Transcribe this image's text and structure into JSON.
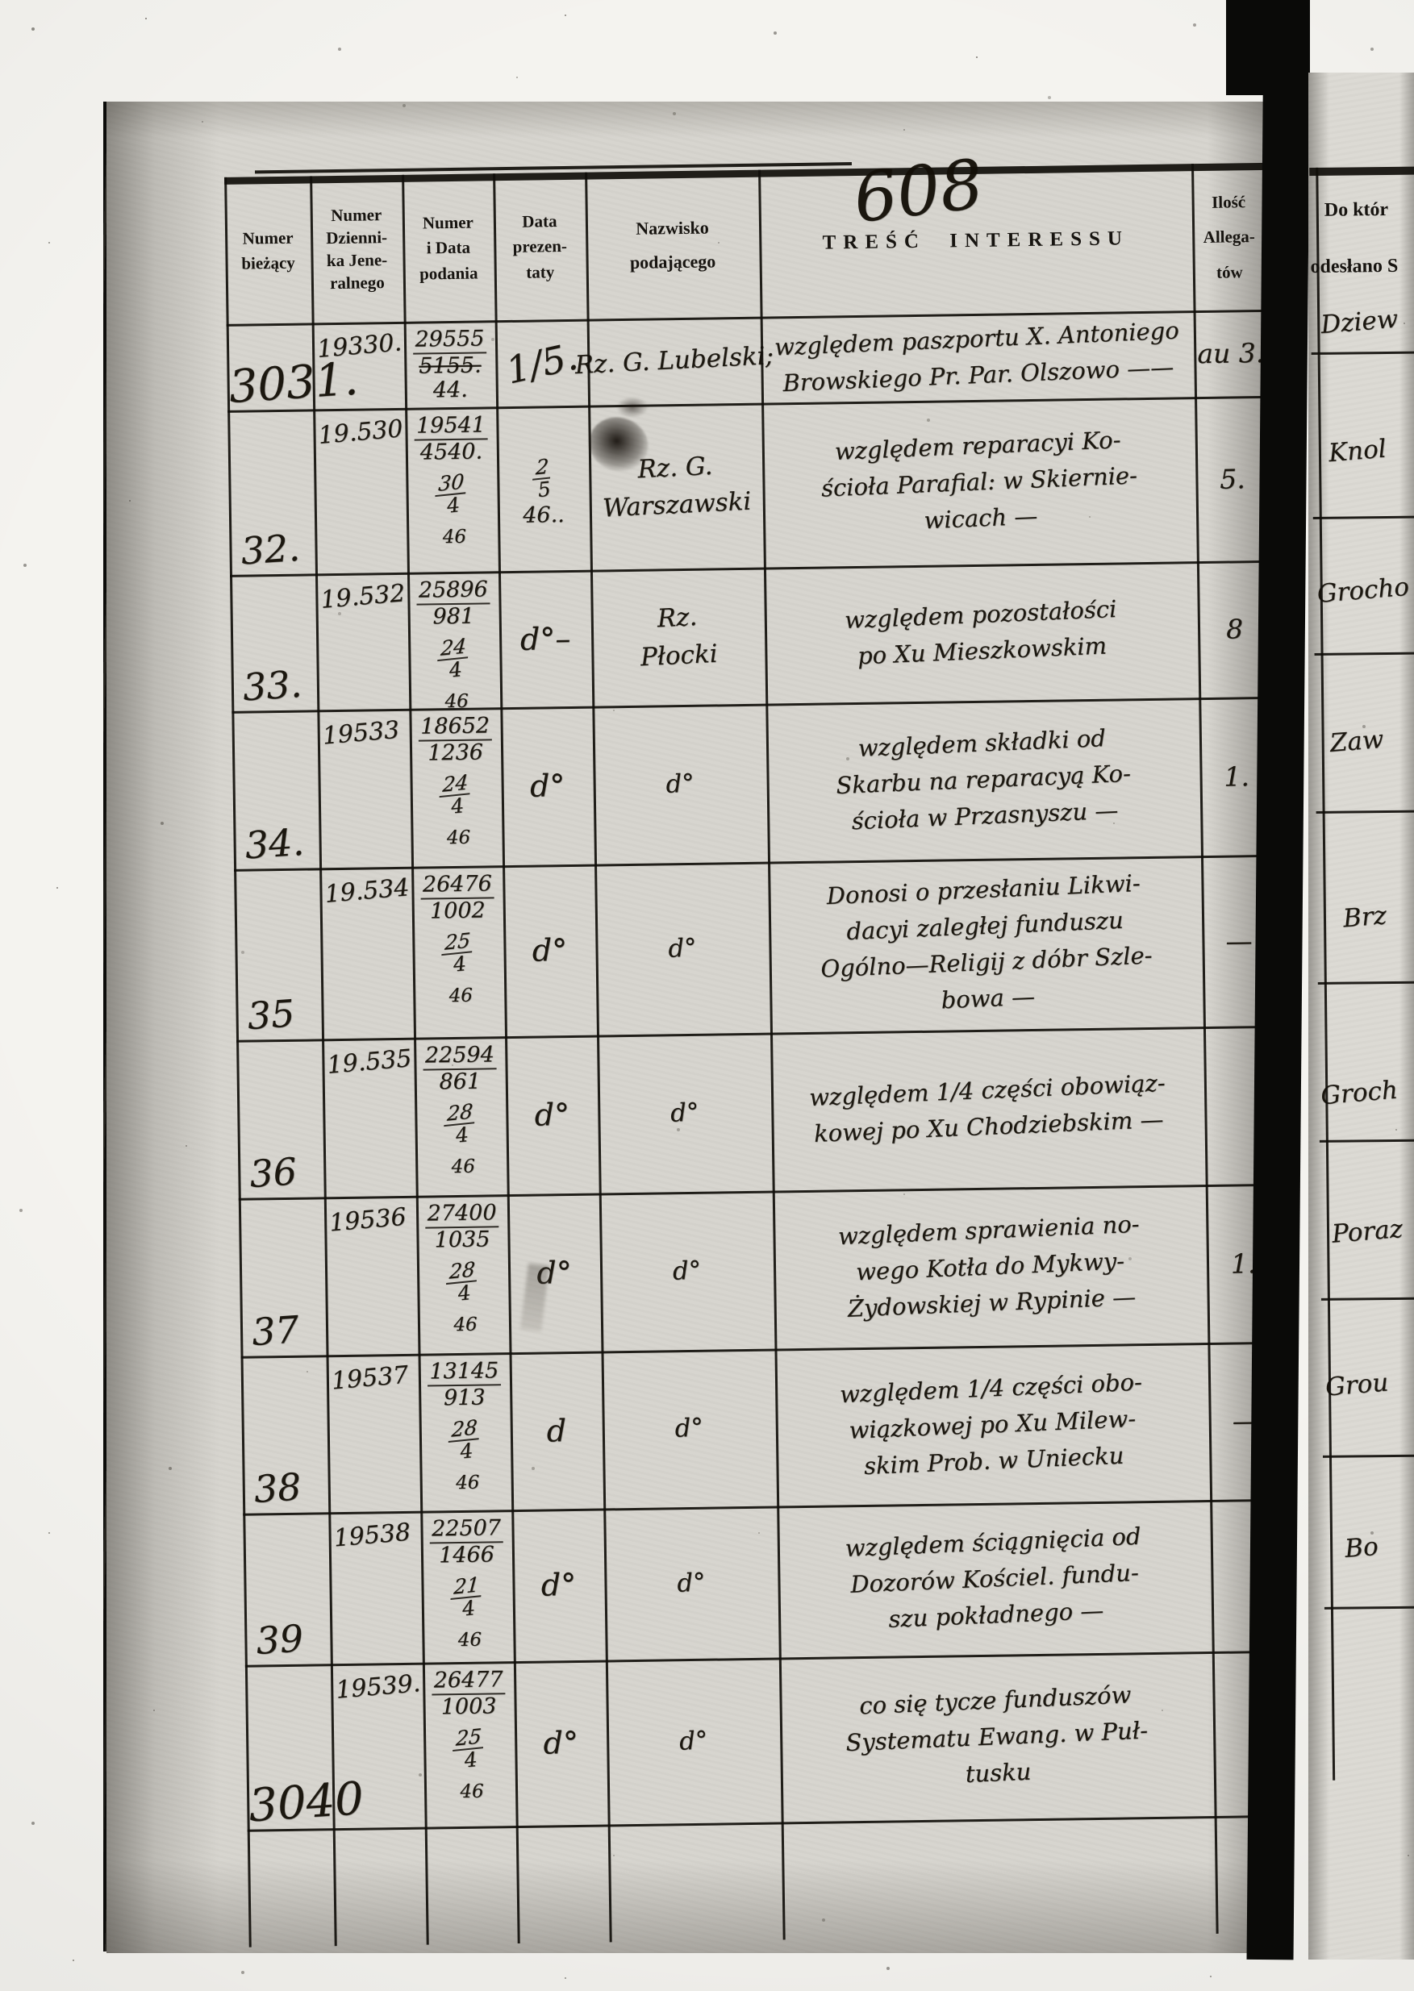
{
  "page": {
    "handwritten_number": "608"
  },
  "scan": {
    "paper_color": "#d6d4ce",
    "ink_color": "#17130c",
    "line_color": "#100e0a"
  },
  "left_table": {
    "headers": [
      {
        "id": "numer-biezacy",
        "lines": [
          "Numer",
          "bieżący"
        ]
      },
      {
        "id": "numer-dziennika-jeneralnego",
        "lines": [
          "Numer",
          "Dzienni-",
          "ka Jene-",
          "ralnego"
        ]
      },
      {
        "id": "numer-i-data-podania",
        "lines": [
          "Numer",
          "i Data",
          "podania"
        ]
      },
      {
        "id": "data-prezentaty",
        "lines": [
          "Data",
          "prezen-",
          "taty"
        ]
      },
      {
        "id": "nazwisko-podajacego",
        "lines": [
          "Nazwisko",
          "podającego"
        ]
      },
      {
        "id": "tresc-interessu",
        "lines": [
          "TREŚĆ INTERESSU"
        ]
      },
      {
        "id": "ilosc-allegatow",
        "lines": [
          "Ilość",
          "Allega-",
          "tów"
        ]
      }
    ],
    "rows": [
      {
        "biezacy": "3031.",
        "dziennik": "19330.",
        "numer": [
          {
            "t": "29555",
            "u": true
          },
          {
            "t": "5155.",
            "s": true
          },
          {
            "t": "44."
          }
        ],
        "prezentata": [
          {
            "t": "1/5.",
            "big": true
          }
        ],
        "nazwisko": [
          "Rz. G. Lubelski;"
        ],
        "tresc": [
          "względem paszportu X. Antoniego",
          "Browskiego Pr. Par. Olszowo ——"
        ],
        "ilosc": "au 3."
      },
      {
        "biezacy": "32.",
        "dziennik": "19.530",
        "numer": [
          {
            "t": "19541",
            "u": true
          },
          {
            "t": "4540."
          },
          {
            "frac": [
              "30",
              "4"
            ],
            "y": "46"
          }
        ],
        "prezentata": [
          {
            "frac": [
              "2",
              "5"
            ]
          },
          {
            "t": "46..",
            "sub": true
          }
        ],
        "nazwisko": [
          "Rz. G.",
          "Warszawski"
        ],
        "tresc": [
          "względem reparacyi Ko-",
          "ścioła Parafial: w Skiernie-",
          "wicach —"
        ],
        "ilosc": "5."
      },
      {
        "biezacy": "33.",
        "dziennik": "19.532",
        "numer": [
          {
            "t": "25896",
            "u": true
          },
          {
            "t": "981"
          },
          {
            "frac": [
              "24",
              "4"
            ],
            "y": "46"
          }
        ],
        "prezentata": [
          {
            "t": "d°–"
          }
        ],
        "nazwisko": [
          "Rz.",
          "Płocki"
        ],
        "tresc": [
          "względem pozostałości",
          "po Xu Mieszkowskim"
        ],
        "ilosc": "8"
      },
      {
        "biezacy": "34.",
        "dziennik": "19533",
        "numer": [
          {
            "t": "18652",
            "u": true
          },
          {
            "t": "1236"
          },
          {
            "frac": [
              "24",
              "4"
            ],
            "y": "46"
          }
        ],
        "prezentata": [
          {
            "t": "d°"
          }
        ],
        "nazwisko": [
          "d°"
        ],
        "tresc": [
          "względem składki od",
          "Skarbu na reparacyą Ko-",
          "ścioła w Przasnyszu —"
        ],
        "ilosc": "1."
      },
      {
        "biezacy": "35",
        "dziennik": "19.534",
        "numer": [
          {
            "t": "26476",
            "u": true
          },
          {
            "t": "1002"
          },
          {
            "frac": [
              "25",
              "4"
            ],
            "y": "46"
          }
        ],
        "prezentata": [
          {
            "t": "d°"
          }
        ],
        "nazwisko": [
          "d°"
        ],
        "tresc": [
          "Donosi o przesłaniu Likwi-",
          "dacyi zaległej funduszu",
          "Ogólno—Religij z dóbr Szle-",
          "bowa —"
        ],
        "ilosc": "—"
      },
      {
        "biezacy": "36",
        "dziennik": "19.535",
        "numer": [
          {
            "t": "22594",
            "u": true
          },
          {
            "t": "861"
          },
          {
            "frac": [
              "28",
              "4"
            ],
            "y": "46"
          }
        ],
        "prezentata": [
          {
            "t": "d°"
          }
        ],
        "nazwisko": [
          "d°"
        ],
        "tresc": [
          "względem 1/4 części obowiąz-",
          "kowej po Xu Chodziebskim —"
        ],
        "ilosc": ""
      },
      {
        "biezacy": "37",
        "dziennik": "19536",
        "numer": [
          {
            "t": "27400",
            "u": true
          },
          {
            "t": "1035"
          },
          {
            "frac": [
              "28",
              "4"
            ],
            "y": "46"
          }
        ],
        "prezentata": [
          {
            "t": "d°"
          }
        ],
        "nazwisko": [
          "d°"
        ],
        "tresc": [
          "względem sprawienia no-",
          "wego Kotła do Mykwy-",
          "Żydowskiej w Rypinie —"
        ],
        "ilosc": "1."
      },
      {
        "biezacy": "38",
        "dziennik": "19537",
        "numer": [
          {
            "t": "13145",
            "u": true
          },
          {
            "t": "913"
          },
          {
            "frac": [
              "28",
              "4"
            ],
            "y": "46"
          }
        ],
        "prezentata": [
          {
            "t": "d"
          }
        ],
        "nazwisko": [
          "d°"
        ],
        "tresc": [
          "względem 1/4 części obo-",
          "wiązkowej po Xu Milew-",
          "skim Prob. w Uniecku"
        ],
        "ilosc": "—"
      },
      {
        "biezacy": "39",
        "dziennik": "19538",
        "numer": [
          {
            "t": "22507",
            "u": true
          },
          {
            "t": "1466"
          },
          {
            "frac": [
              "21",
              "4"
            ],
            "y": "46"
          }
        ],
        "prezentata": [
          {
            "t": "d°"
          }
        ],
        "nazwisko": [
          "d°"
        ],
        "tresc": [
          "względem ściągnięcia od",
          "Dozorów Kościel. fundu-",
          "szu pokładnego —"
        ],
        "ilosc": ""
      },
      {
        "biezacy": "3040",
        "dziennik": "19539.",
        "numer": [
          {
            "t": "26477",
            "u": true
          },
          {
            "t": "1003"
          },
          {
            "frac": [
              "25",
              "4"
            ],
            "y": "46"
          }
        ],
        "prezentata": [
          {
            "t": "d°"
          }
        ],
        "nazwisko": [
          "d°"
        ],
        "tresc": [
          "co się tycze funduszów",
          "Systematu Ewang. w Puł-",
          "tusku"
        ],
        "ilosc": ""
      }
    ]
  },
  "right_table": {
    "header_lines": [
      "Do któr",
      "odesłano S"
    ],
    "entries": [
      "Dziew",
      "Knol",
      "Grocho",
      "Zaw",
      "Brz",
      "Groch",
      "Poraz",
      "Grou",
      "Bo",
      ""
    ]
  }
}
